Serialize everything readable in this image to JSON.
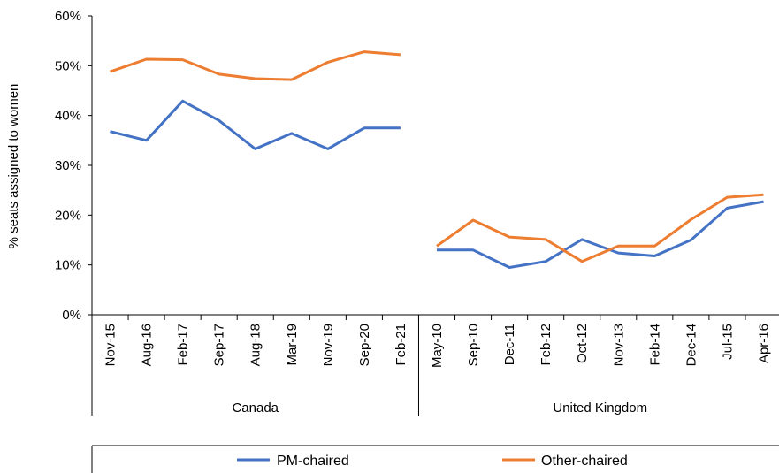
{
  "chart_data": {
    "type": "line",
    "ylabel": "% seats assigned to women",
    "ylim": [
      0,
      60
    ],
    "yticks": [
      0,
      10,
      20,
      30,
      40,
      50,
      60
    ],
    "ytick_labels": [
      "0%",
      "10%",
      "20%",
      "30%",
      "40%",
      "50%",
      "60%"
    ],
    "grid": false,
    "legend_position": "bottom",
    "groups": [
      {
        "name": "Canada",
        "categories": [
          "Nov-15",
          "Aug-16",
          "Feb-17",
          "Sep-17",
          "Aug-18",
          "Mar-19",
          "Nov-19",
          "Sep-20",
          "Feb-21"
        ],
        "series": [
          {
            "name": "PM-chaired",
            "values": [
              36.8,
              35.0,
              42.9,
              39.0,
              33.3,
              36.4,
              33.3,
              37.5,
              37.5
            ]
          },
          {
            "name": "Other-chaired",
            "values": [
              48.8,
              51.3,
              51.2,
              48.3,
              47.4,
              47.2,
              50.7,
              52.8,
              52.2
            ]
          }
        ]
      },
      {
        "name": "United Kingdom",
        "categories": [
          "May-10",
          "Sep-10",
          "Dec-11",
          "Feb-12",
          "Oct-12",
          "Nov-13",
          "Feb-14",
          "Dec-14",
          "Jul-15",
          "Apr-16"
        ],
        "series": [
          {
            "name": "PM-chaired",
            "values": [
              13.0,
              13.0,
              9.5,
              10.7,
              15.1,
              12.4,
              11.8,
              15.0,
              21.4,
              22.7
            ]
          },
          {
            "name": "Other-chaired",
            "values": [
              13.8,
              19.0,
              15.6,
              15.1,
              10.7,
              13.8,
              13.8,
              19.1,
              23.6,
              24.1
            ]
          }
        ]
      }
    ],
    "legend": [
      {
        "name": "PM-chaired",
        "color": "#4472c4"
      },
      {
        "name": "Other-chaired",
        "color": "#ed7d31"
      }
    ],
    "colors": {
      "PM-chaired": "#4472c4",
      "Other-chaired": "#ed7d31"
    }
  }
}
